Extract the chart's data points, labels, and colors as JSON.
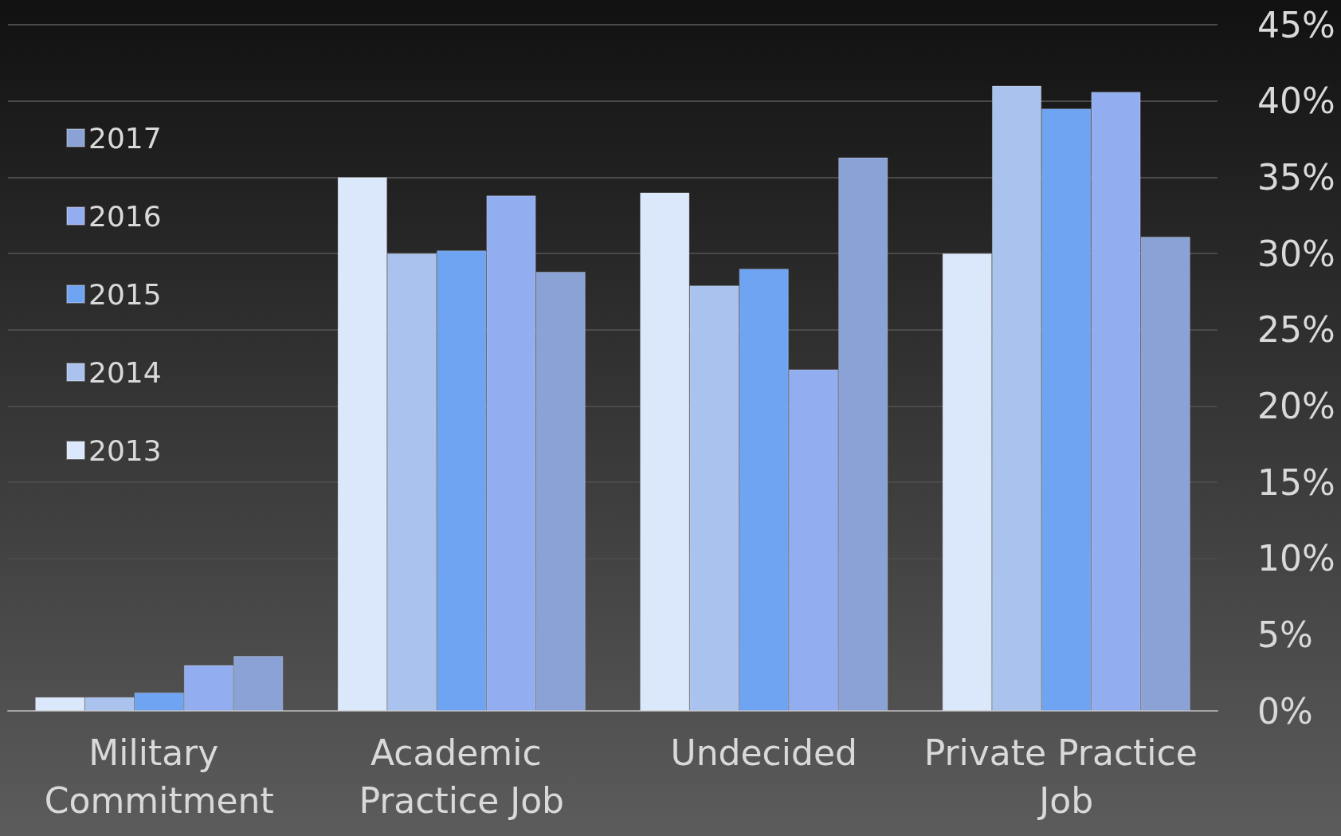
{
  "chart_data": {
    "type": "bar",
    "categories": [
      "Military Commitment",
      "Academic Practice Job",
      "Undecided",
      "Private Practice Job"
    ],
    "series": [
      {
        "name": "2013",
        "color": "#dbe7fb",
        "values": [
          0.9,
          35.0,
          34.0,
          30.0
        ]
      },
      {
        "name": "2014",
        "color": "#a9c2ee",
        "values": [
          0.9,
          30.0,
          27.9,
          41.0
        ]
      },
      {
        "name": "2015",
        "color": "#6ea4f2",
        "values": [
          1.2,
          30.2,
          29.0,
          39.5
        ]
      },
      {
        "name": "2016",
        "color": "#93aef0",
        "values": [
          3.0,
          33.8,
          22.4,
          40.6
        ]
      },
      {
        "name": "2017",
        "color": "#8aa2d6",
        "values": [
          3.6,
          28.8,
          36.3,
          31.1
        ]
      }
    ],
    "ylim": [
      0,
      45
    ],
    "yticks": [
      {
        "value": 0,
        "label": "0%"
      },
      {
        "value": 5,
        "label": "5%"
      },
      {
        "value": 10,
        "label": "10%"
      },
      {
        "value": 15,
        "label": "15%"
      },
      {
        "value": 20,
        "label": "20%"
      },
      {
        "value": 25,
        "label": "25%"
      },
      {
        "value": 30,
        "label": "30%"
      },
      {
        "value": 35,
        "label": "35%"
      },
      {
        "value": 40,
        "label": "40%"
      },
      {
        "value": 45,
        "label": "45%"
      }
    ],
    "grid": "y",
    "legend": "left"
  }
}
